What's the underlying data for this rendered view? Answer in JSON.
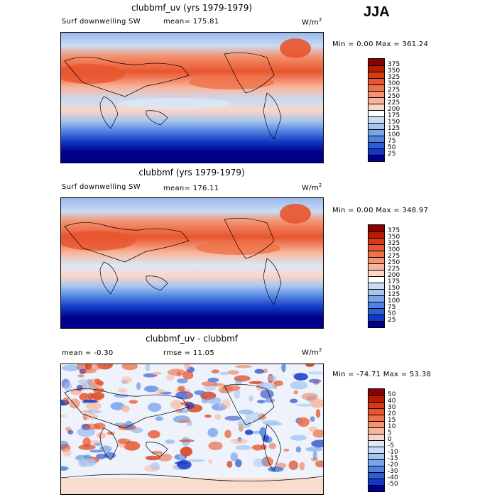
{
  "season": "JJA",
  "chart_data": [
    {
      "type": "heatmap",
      "title": "clubbmf_uv (yrs 1979-1979)",
      "variable_label": "Surf downwelling SW",
      "mean_text": "mean= 175.81",
      "units": "W/m",
      "units_sup": "2",
      "min_max_text": "Min =    0.00 Max = 361.24",
      "colorbar": {
        "levels": [
          "375",
          "350",
          "325",
          "300",
          "275",
          "250",
          "225",
          "200",
          "175",
          "150",
          "125",
          "100",
          "75",
          "50",
          "25"
        ],
        "colors": [
          "#8b0000",
          "#b71c00",
          "#d93a16",
          "#e8552e",
          "#ef7248",
          "#f59271",
          "#f9b59b",
          "#fbd6c6",
          "#ffffff",
          "#c9dcf5",
          "#a6c4f0",
          "#7aa5ea",
          "#4f82e2",
          "#2a5fd8",
          "#1238c4",
          "#00008b"
        ]
      }
    },
    {
      "type": "heatmap",
      "title": "clubbmf (yrs 1979-1979)",
      "variable_label": "Surf downwelling SW",
      "mean_text": "mean= 176.11",
      "units": "W/m",
      "units_sup": "2",
      "min_max_text": "Min =    0.00 Max = 348.97",
      "colorbar": {
        "levels": [
          "375",
          "350",
          "325",
          "300",
          "275",
          "250",
          "225",
          "200",
          "175",
          "150",
          "125",
          "100",
          "75",
          "50",
          "25"
        ],
        "colors": [
          "#8b0000",
          "#b71c00",
          "#d93a16",
          "#e8552e",
          "#ef7248",
          "#f59271",
          "#f9b59b",
          "#fbd6c6",
          "#ffffff",
          "#c9dcf5",
          "#a6c4f0",
          "#7aa5ea",
          "#4f82e2",
          "#2a5fd8",
          "#1238c4",
          "#00008b"
        ]
      }
    },
    {
      "type": "heatmap",
      "title": "clubbmf_uv - clubbmf",
      "mean_text": "mean =   -0.30",
      "rmse_text": "rmse =   11.05",
      "units": "W/m",
      "units_sup": "2",
      "min_max_text": "Min = -74.71  Max =  53.38",
      "colorbar": {
        "levels": [
          "50",
          "40",
          "30",
          "20",
          "15",
          "10",
          "5",
          "0",
          "-5",
          "-10",
          "-15",
          "-20",
          "-30",
          "-40",
          "-50"
        ],
        "colors": [
          "#8b0000",
          "#b71c00",
          "#d93a16",
          "#e8552e",
          "#ef7248",
          "#f59271",
          "#f9b59b",
          "#fbd6c6",
          "#dde9f8",
          "#c9dcf5",
          "#a6c4f0",
          "#7aa5ea",
          "#4f82e2",
          "#2a5fd8",
          "#1238c4",
          "#00008b"
        ]
      }
    }
  ]
}
